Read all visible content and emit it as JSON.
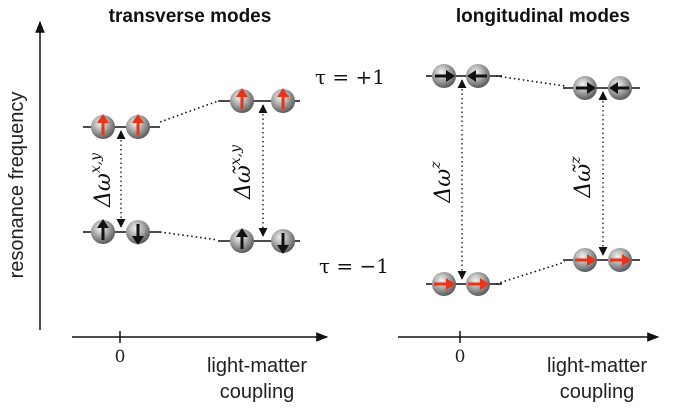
{
  "left_panel": {
    "title": "transverse modes",
    "y_axis_label": "resonance frequency",
    "x_tick": "0",
    "x_label_line1": "light-matter",
    "x_label_line2": "coupling",
    "delta_left": "Δω",
    "delta_left_sup": "x,y",
    "delta_right": "Δω̃",
    "delta_right_sup": "x,y",
    "upper_spin_color": "#e8351a",
    "lower_spin_color": "#111111"
  },
  "right_panel": {
    "title": "longitudinal modes",
    "x_tick": "0",
    "x_label_line1": "light-matter",
    "x_label_line2": "coupling",
    "tau_upper": "τ = +1",
    "tau_lower": "τ = −1",
    "delta_left": "Δω",
    "delta_left_sup": "z",
    "delta_right": "Δω̃",
    "delta_right_sup": "z",
    "upper_spin_color": "#111111",
    "lower_spin_color": "#e8351a"
  }
}
